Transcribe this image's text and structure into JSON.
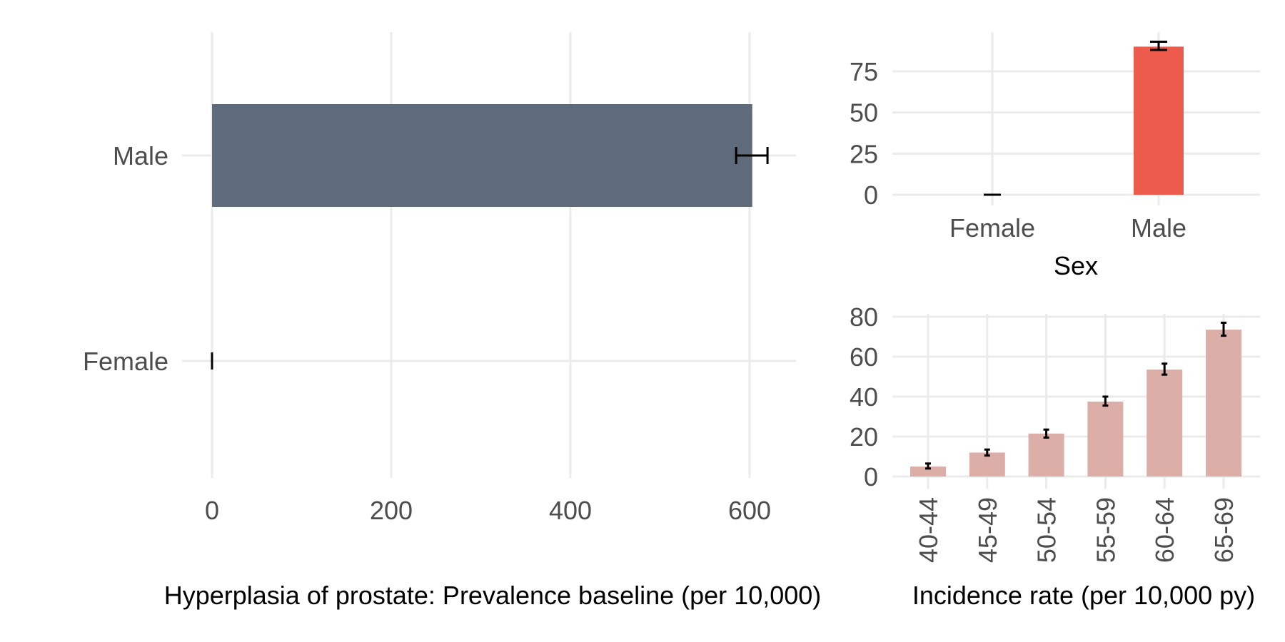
{
  "chart_data": [
    {
      "type": "bar",
      "orientation": "horizontal",
      "categories": [
        "Male",
        "Female"
      ],
      "values": [
        603,
        0
      ],
      "error_low": [
        585,
        0
      ],
      "error_high": [
        620,
        0
      ],
      "xlabel": "Hyperplasia of prostate: Prevalence baseline (per 10,000)",
      "ylabel": "",
      "xlim": [
        -30,
        650
      ],
      "xticks": [
        0,
        200,
        400,
        600
      ],
      "xtick_labels": [
        "0",
        "200",
        "400",
        "600"
      ],
      "grid": true,
      "color": "#5D6B7A"
    },
    {
      "type": "bar",
      "categories": [
        "Female",
        "Male"
      ],
      "values": [
        0,
        90
      ],
      "error_low": [
        0,
        88
      ],
      "error_high": [
        0,
        93
      ],
      "xlabel": "Sex",
      "ylabel": "",
      "ylim": [
        0,
        100
      ],
      "yticks": [
        0,
        25,
        50,
        75
      ],
      "ytick_labels": [
        "0",
        "25",
        "50",
        "75"
      ],
      "grid": true,
      "color": "#EC5B4C"
    },
    {
      "type": "bar",
      "categories": [
        "40-44",
        "45-49",
        "50-54",
        "55-59",
        "60-64",
        "65-69"
      ],
      "values": [
        5,
        12,
        21.5,
        37.5,
        53.5,
        73.5
      ],
      "error_low": [
        4,
        10.5,
        19.5,
        35.5,
        51,
        70.5
      ],
      "error_high": [
        6.5,
        13.5,
        23.5,
        40,
        56.5,
        77
      ],
      "xlabel": "Incidence rate (per 10,000 py)",
      "ylabel": "",
      "ylim": [
        0,
        85
      ],
      "yticks": [
        0,
        20,
        40,
        60,
        80
      ],
      "ytick_labels": [
        "0",
        "20",
        "40",
        "60",
        "80"
      ],
      "grid": true,
      "color": "#DBAFA8"
    }
  ]
}
